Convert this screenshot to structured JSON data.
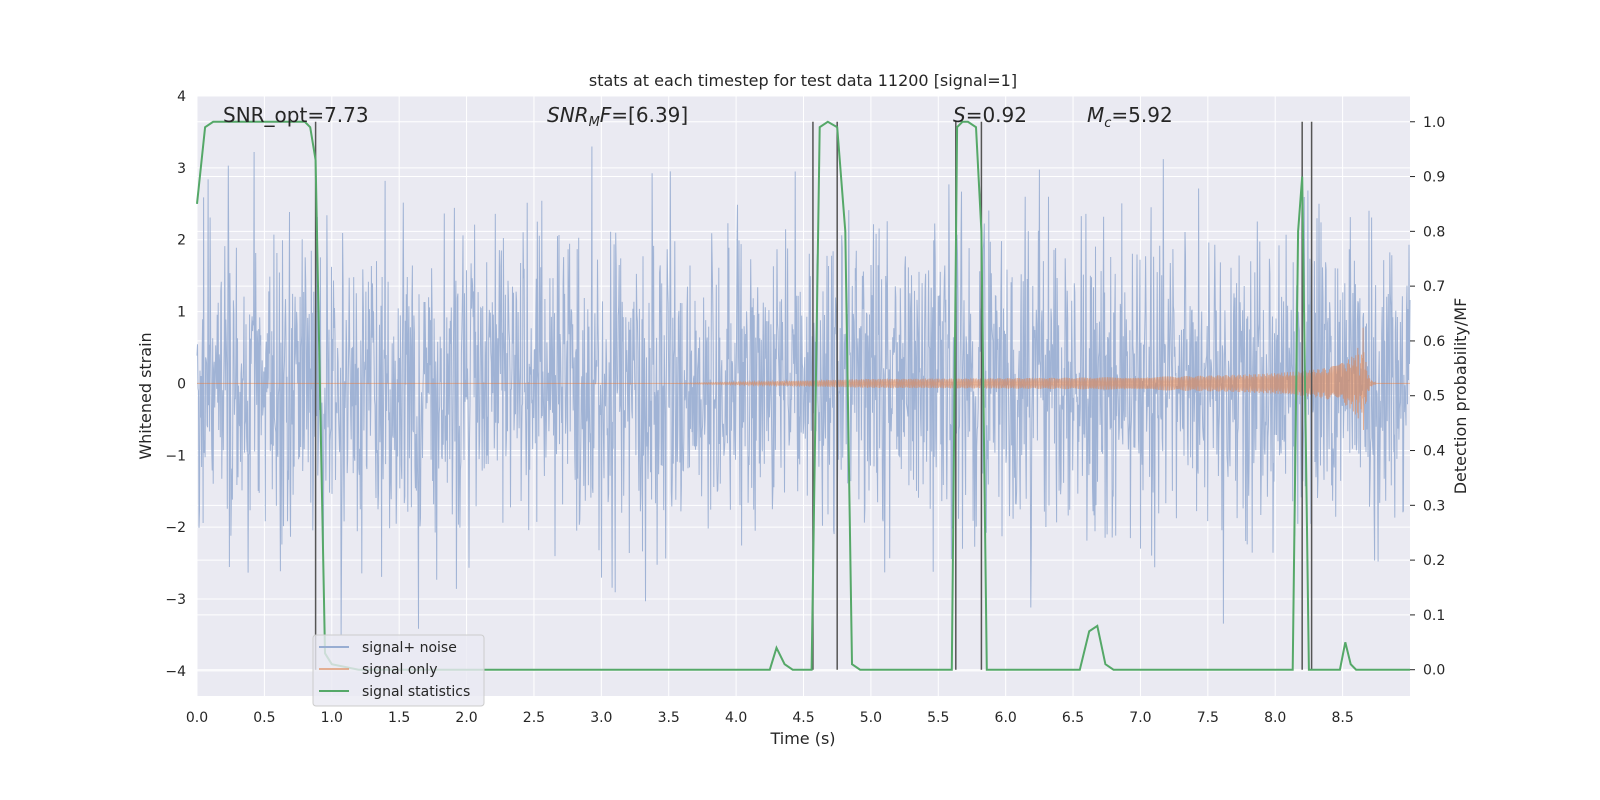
{
  "chart_data": {
    "type": "line",
    "title": "stats at each timestep for test data 11200 [signal=1]",
    "xlabel": "Time (s)",
    "ylabel_left": "Whitened strain",
    "ylabel_right": "Detection probability/MF",
    "xlim": [
      0.0,
      9.0
    ],
    "ylim_left": [
      -4.35,
      4.0
    ],
    "ylim_right": [
      -0.048,
      1.047
    ],
    "grid": true,
    "background": "#eaeaf2",
    "x_ticks": [
      "0.0",
      "0.5",
      "1.0",
      "1.5",
      "2.0",
      "2.5",
      "3.0",
      "3.5",
      "4.0",
      "4.5",
      "5.0",
      "5.5",
      "6.0",
      "6.5",
      "7.0",
      "7.5",
      "8.0",
      "8.5"
    ],
    "y_left_ticks": [
      "−4",
      "−3",
      "−2",
      "−1",
      "0",
      "1",
      "2",
      "3",
      "4"
    ],
    "y_right_ticks": [
      "0.0",
      "0.1",
      "0.2",
      "0.3",
      "0.4",
      "0.5",
      "0.6",
      "0.7",
      "0.8",
      "0.9",
      "1.0"
    ],
    "annotations": {
      "snr_opt": "SNR_opt=7.73",
      "snr_mf": "=[6.39]",
      "s_val": "=0.92",
      "mc_val": "=5.92"
    },
    "legend": {
      "placement": "lower-left",
      "entries": [
        "signal+ noise",
        "signal only",
        "signal statistics"
      ]
    },
    "colors": {
      "noise": "#98add2",
      "signal": "#dd8452",
      "stats": "#55a868",
      "vlines": "#555555"
    },
    "series": [
      {
        "name": "signal+ noise",
        "description_values": "whitened noise, approx amplitude range -4 to 3.6",
        "envelope": [
          -4.0,
          3.6
        ]
      },
      {
        "name": "signal only",
        "chirp_start": 3.5,
        "merger_time": 8.65,
        "peak_amplitude": 0.85
      },
      {
        "name": "signal statistics",
        "x": [
          0.0,
          0.06,
          0.12,
          0.2,
          0.3,
          0.4,
          0.5,
          0.6,
          0.7,
          0.8,
          0.84,
          0.88,
          0.95,
          1.0,
          1.2,
          1.5,
          2.0,
          2.5,
          3.0,
          3.5,
          4.0,
          4.25,
          4.3,
          4.36,
          4.42,
          4.5,
          4.56,
          4.62,
          4.68,
          4.75,
          4.81,
          4.86,
          4.92,
          5.0,
          5.2,
          5.4,
          5.6,
          5.64,
          5.68,
          5.72,
          5.78,
          5.82,
          5.86,
          5.92,
          6.0,
          6.2,
          6.4,
          6.55,
          6.62,
          6.68,
          6.74,
          6.8,
          7.0,
          7.5,
          8.0,
          8.13,
          8.17,
          8.2,
          8.25,
          8.3,
          8.36,
          8.42,
          8.48,
          8.52,
          8.56,
          8.6,
          8.7,
          8.8,
          9.0
        ],
        "y": [
          0.85,
          0.99,
          1.0,
          1.0,
          1.0,
          1.0,
          1.0,
          1.0,
          1.0,
          1.0,
          0.99,
          0.93,
          0.03,
          0.01,
          0.0,
          0.0,
          0.0,
          0.0,
          0.0,
          0.0,
          0.0,
          0.0,
          0.04,
          0.01,
          0.0,
          0.0,
          0.0,
          0.99,
          1.0,
          0.99,
          0.8,
          0.01,
          0.0,
          0.0,
          0.0,
          0.0,
          0.0,
          0.99,
          1.0,
          1.0,
          0.99,
          0.8,
          0.0,
          0.0,
          0.0,
          0.0,
          0.0,
          0.0,
          0.07,
          0.08,
          0.01,
          0.0,
          0.0,
          0.0,
          0.0,
          0.0,
          0.8,
          0.9,
          0.0,
          0.0,
          0.0,
          0.0,
          0.0,
          0.05,
          0.01,
          0.0,
          0.0,
          0.0,
          0.0
        ]
      }
    ],
    "vertical_lines": [
      0.88,
      4.57,
      4.75,
      5.63,
      5.82,
      8.2,
      8.27
    ]
  }
}
